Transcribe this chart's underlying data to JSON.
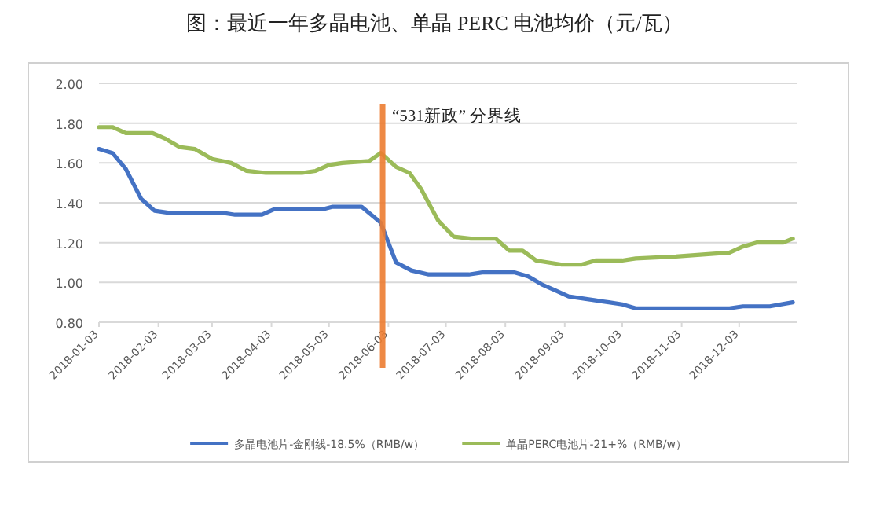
{
  "chart_data": {
    "type": "line",
    "title": "图：最近一年多晶电池、单晶 PERC 电池均价（元/瓦）",
    "ylim": [
      0.8,
      2.0
    ],
    "yticks": [
      {
        "value": 0.8,
        "label": "0.80"
      },
      {
        "value": 1.0,
        "label": "1.00"
      },
      {
        "value": 1.2,
        "label": "1.20"
      },
      {
        "value": 1.4,
        "label": "1.40"
      },
      {
        "value": 1.6,
        "label": "1.60"
      },
      {
        "value": 1.8,
        "label": "1.80"
      },
      {
        "value": 2.0,
        "label": "2.00"
      }
    ],
    "xlim": [
      "2018-01-03",
      "2019-01-02"
    ],
    "xticks": [
      "2018-01-03",
      "2018-02-03",
      "2018-03-03",
      "2018-04-03",
      "2018-05-03",
      "2018-06-03",
      "2018-07-03",
      "2018-08-03",
      "2018-09-03",
      "2018-10-03",
      "2018-11-03",
      "2018-12-03"
    ],
    "grid": "y",
    "legend": "bottom",
    "marker": "none",
    "line_style": "solid",
    "ref_lines": [
      {
        "axis": "x",
        "value": "2018-05-31",
        "label": "“531新政” 分界线",
        "color": "#ed7d31"
      }
    ],
    "series": [
      {
        "name": "多晶电池片-金刚线-18.5%（RMB/w）",
        "color": "#4472c4",
        "x": [
          "2018-01-03",
          "2018-01-10",
          "2018-01-17",
          "2018-01-25",
          "2018-02-01",
          "2018-02-08",
          "2018-03-08",
          "2018-03-15",
          "2018-03-29",
          "2018-04-05",
          "2018-05-01",
          "2018-05-05",
          "2018-05-20",
          "2018-05-30",
          "2018-06-07",
          "2018-06-15",
          "2018-06-24",
          "2018-07-01",
          "2018-07-15",
          "2018-07-22",
          "2018-08-01",
          "2018-08-08",
          "2018-08-15",
          "2018-08-22",
          "2018-08-29",
          "2018-09-05",
          "2018-09-12",
          "2018-09-19",
          "2018-09-26",
          "2018-10-03",
          "2018-10-10",
          "2018-11-28",
          "2018-12-05",
          "2018-12-19",
          "2018-12-31"
        ],
        "values": [
          1.67,
          1.65,
          1.57,
          1.42,
          1.36,
          1.35,
          1.35,
          1.34,
          1.34,
          1.37,
          1.37,
          1.38,
          1.38,
          1.3,
          1.1,
          1.06,
          1.04,
          1.04,
          1.04,
          1.05,
          1.05,
          1.05,
          1.03,
          0.99,
          0.96,
          0.93,
          0.92,
          0.91,
          0.9,
          0.89,
          0.87,
          0.87,
          0.88,
          0.88,
          0.9
        ]
      },
      {
        "name": "单晶PERC电池片-21+%（RMB/w）",
        "color": "#9bbb59",
        "x": [
          "2018-01-03",
          "2018-01-10",
          "2018-01-17",
          "2018-01-31",
          "2018-02-07",
          "2018-02-14",
          "2018-02-22",
          "2018-03-03",
          "2018-03-13",
          "2018-03-21",
          "2018-03-31",
          "2018-04-19",
          "2018-04-26",
          "2018-05-03",
          "2018-05-10",
          "2018-05-24",
          "2018-05-30",
          "2018-06-07",
          "2018-06-14",
          "2018-06-20",
          "2018-06-29",
          "2018-07-07",
          "2018-07-16",
          "2018-07-29",
          "2018-08-05",
          "2018-08-12",
          "2018-08-19",
          "2018-09-01",
          "2018-09-12",
          "2018-09-19",
          "2018-10-03",
          "2018-10-10",
          "2018-10-31",
          "2018-11-14",
          "2018-11-28",
          "2018-12-05",
          "2018-12-12",
          "2018-12-26",
          "2018-12-31"
        ],
        "values": [
          1.78,
          1.78,
          1.75,
          1.75,
          1.72,
          1.68,
          1.67,
          1.62,
          1.6,
          1.56,
          1.55,
          1.55,
          1.56,
          1.59,
          1.6,
          1.61,
          1.65,
          1.58,
          1.55,
          1.47,
          1.31,
          1.23,
          1.22,
          1.22,
          1.16,
          1.16,
          1.11,
          1.09,
          1.09,
          1.11,
          1.11,
          1.12,
          1.13,
          1.14,
          1.15,
          1.18,
          1.2,
          1.2,
          1.22
        ]
      }
    ]
  }
}
